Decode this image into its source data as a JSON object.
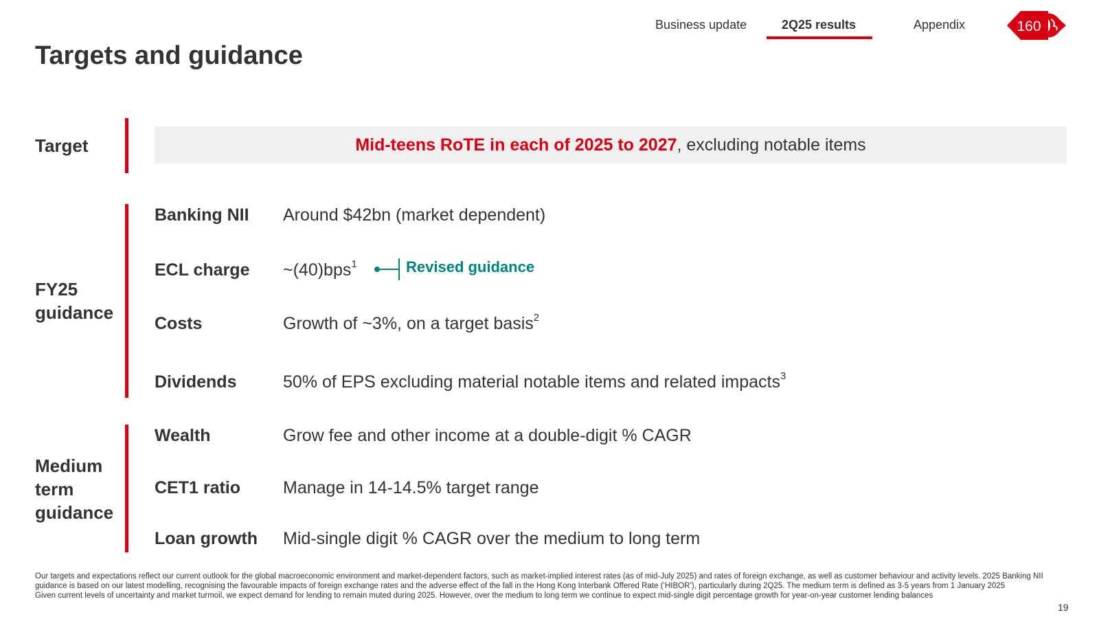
{
  "nav": {
    "items": [
      "Business update",
      "2Q25 results",
      "Appendix"
    ],
    "active_index": 1
  },
  "logo": {
    "text": "160"
  },
  "page_title": "Targets and guidance",
  "target": {
    "label": "Target",
    "highlight": "Mid-teens RoTE in each of 2025 to 2027",
    "rest": ", excluding notable items"
  },
  "fy25": {
    "label_line1": "FY25",
    "label_line2": "guidance",
    "rows": [
      {
        "label": "Banking NII",
        "value": "Around $42bn (market dependent)",
        "sup": ""
      },
      {
        "label": "ECL charge",
        "value": "~(40)bps",
        "sup": "1"
      },
      {
        "label": "Costs",
        "value": "Growth of ~3%, on a target basis",
        "sup": "2"
      },
      {
        "label": "Dividends",
        "value": "50% of EPS excluding material notable items and related impacts",
        "sup": "3"
      }
    ],
    "revised_label": "Revised guidance"
  },
  "medium": {
    "label_line1": "Medium",
    "label_line2": "term",
    "label_line3": "guidance",
    "rows": [
      {
        "label": "Wealth",
        "value": "Grow fee and other income at a double-digit % CAGR"
      },
      {
        "label": "CET1 ratio",
        "value": "Manage in 14-14.5% target range"
      },
      {
        "label": "Loan growth",
        "value": "Mid-single digit % CAGR over the medium to long term"
      }
    ]
  },
  "footnote": {
    "para1": "Our targets and expectations reflect our current outlook for the global macroeconomic environment and market-dependent factors, such as market-implied interest rates (as of mid-July 2025) and rates of foreign exchange, as well as customer behaviour and activity levels. 2025 Banking NII guidance is based on our latest modelling, recognising the favourable impacts of foreign exchange rates and the adverse effect of the fall in the Hong Kong Interbank Offered Rate (‘HIBOR’), particularly during 2Q25. The medium term is defined as 3-5 years from 1 January 2025",
    "para2": "Given current levels of uncertainty and market turmoil, we expect demand for lending to remain muted during 2025. However, over the medium to long term we continue to expect mid-single digit percentage growth for year-on-year customer lending balances"
  },
  "page_number": "19",
  "colors": {
    "accent_red": "#db0011",
    "teal": "#00847f",
    "target_bg": "#f0f0f0",
    "text": "#333333"
  }
}
